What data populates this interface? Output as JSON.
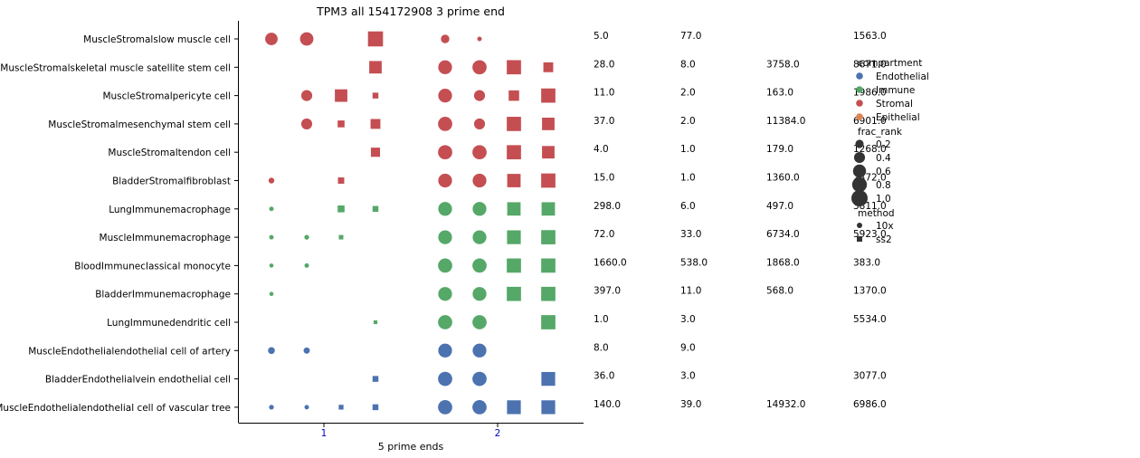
{
  "chart_data": {
    "type": "scatter",
    "title": "TPM3 all 154172908 3 prime end",
    "xlabel": "5 prime ends",
    "ylabel": "",
    "x_ticks": [
      "1",
      "2"
    ],
    "rows": [
      "MuscleStromalslow muscle cell",
      "MuscleStromalskeletal muscle satellite stem cell",
      "MuscleStromalpericyte cell",
      "MuscleStromalmesenchymal stem cell",
      "MuscleStromaltendon cell",
      "BladderStromalfibroblast",
      "LungImmunemacrophage",
      "MuscleImmunemacrophage",
      "BloodImmuneclassical monocyte",
      "BladderImmunemacrophage",
      "LungImmunedendritic cell",
      "MuscleEndothelialendothelial cell of artery",
      "BladderEndothelialvein endothelial cell",
      "MuscleEndothelialendothelial cell of vascular tree"
    ],
    "row_compartment": [
      "Stromal",
      "Stromal",
      "Stromal",
      "Stromal",
      "Stromal",
      "Stromal",
      "Immune",
      "Immune",
      "Immune",
      "Immune",
      "Immune",
      "Endothelial",
      "Endothelial",
      "Endothelial"
    ],
    "column_slots": [
      {
        "x": 1,
        "method": "10x"
      },
      {
        "x": 1,
        "method": "10x"
      },
      {
        "x": 1,
        "method": "ss2"
      },
      {
        "x": 1,
        "method": "ss2"
      },
      {
        "x": 2,
        "method": "10x"
      },
      {
        "x": 2,
        "method": "10x"
      },
      {
        "x": 2,
        "method": "ss2"
      },
      {
        "x": 2,
        "method": "ss2"
      }
    ],
    "frac_rank": [
      [
        0.6,
        0.7,
        null,
        0.9,
        0.25,
        0.05,
        null,
        null
      ],
      [
        null,
        null,
        null,
        0.6,
        0.75,
        0.8,
        0.8,
        0.35
      ],
      [
        null,
        0.45,
        0.6,
        0.1,
        0.75,
        0.45,
        0.4,
        0.8
      ],
      [
        null,
        0.45,
        0.15,
        0.35,
        0.8,
        0.45,
        0.8,
        0.6
      ],
      [
        null,
        null,
        null,
        0.3,
        0.8,
        0.8,
        0.8,
        0.6
      ],
      [
        0.1,
        null,
        0.12,
        null,
        0.75,
        0.75,
        0.7,
        0.8
      ],
      [
        0.05,
        null,
        0.15,
        0.1,
        0.75,
        0.75,
        0.7,
        0.7
      ],
      [
        0.05,
        0.06,
        0.05,
        null,
        0.75,
        0.75,
        0.75,
        0.8
      ],
      [
        0.04,
        0.05,
        null,
        null,
        0.8,
        0.8,
        0.8,
        0.8
      ],
      [
        0.04,
        null,
        null,
        null,
        0.75,
        0.75,
        0.8,
        0.8
      ],
      [
        null,
        null,
        null,
        0.03,
        0.8,
        0.8,
        null,
        0.8
      ],
      [
        0.15,
        0.12,
        null,
        null,
        0.75,
        0.75,
        null,
        null
      ],
      [
        null,
        null,
        null,
        0.1,
        0.8,
        0.8,
        null,
        0.75
      ],
      [
        0.06,
        0.05,
        0.06,
        0.1,
        0.8,
        0.8,
        0.75,
        0.75
      ]
    ],
    "counts": [
      [
        "5.0",
        "77.0",
        "",
        "1563.0"
      ],
      [
        "28.0",
        "8.0",
        "3758.0",
        "8671.0"
      ],
      [
        "11.0",
        "2.0",
        "163.0",
        "1986.0"
      ],
      [
        "37.0",
        "2.0",
        "11384.0",
        "6901.0"
      ],
      [
        "4.0",
        "1.0",
        "179.0",
        "1268.0"
      ],
      [
        "15.0",
        "1.0",
        "1360.0",
        "2472.0"
      ],
      [
        "298.0",
        "6.0",
        "497.0",
        "3811.0"
      ],
      [
        "72.0",
        "33.0",
        "6734.0",
        "5923.0"
      ],
      [
        "1660.0",
        "538.0",
        "1868.0",
        "383.0"
      ],
      [
        "397.0",
        "11.0",
        "568.0",
        "1370.0"
      ],
      [
        "1.0",
        "3.0",
        "",
        "5534.0"
      ],
      [
        "8.0",
        "9.0",
        "",
        ""
      ],
      [
        "36.0",
        "3.0",
        "",
        "3077.0"
      ],
      [
        "140.0",
        "39.0",
        "14932.0",
        "6986.0"
      ]
    ],
    "legend": {
      "placement": "right",
      "compartment_title": "compartment",
      "compartments": [
        {
          "name": "Endothelial",
          "color": "#4c72b0"
        },
        {
          "name": "Immune",
          "color": "#55a868"
        },
        {
          "name": "Stromal",
          "color": "#c44e52"
        },
        {
          "name": "Epithelial",
          "color": "#dd8452"
        }
      ],
      "frac_title": "frac_rank",
      "frac_levels": [
        "0.2",
        "0.4",
        "0.6",
        "0.8",
        "1.0"
      ],
      "method_title": "method",
      "methods": [
        {
          "name": "10x",
          "marker": "circle"
        },
        {
          "name": "ss2",
          "marker": "square"
        }
      ]
    },
    "colors": {
      "Endothelial": "#4c72b0",
      "Immune": "#55a868",
      "Stromal": "#c44e52",
      "Epithelial": "#dd8452",
      "tick_label": "#0000cc",
      "legend_marker": "#333333"
    }
  }
}
